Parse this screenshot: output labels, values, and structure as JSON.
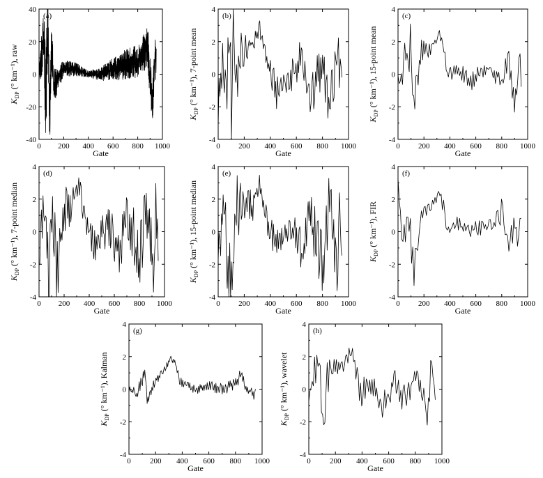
{
  "chart_data": [
    {
      "type": "line",
      "panel_label": "(a)",
      "series_kind": "raw",
      "xlabel": "Gate",
      "ylabel": {
        "base": "K",
        "sub": "DP",
        "rest": " (° km⁻¹),  raw"
      },
      "xlim": [
        0,
        1000
      ],
      "ylim": [
        -40,
        40
      ],
      "xticks": [
        0,
        200,
        400,
        600,
        800,
        1000
      ],
      "yticks": [
        -40,
        -20,
        0,
        20,
        40
      ],
      "points": 900,
      "max_gate": 950,
      "key_points": [
        [
          0,
          0
        ],
        [
          40,
          22
        ],
        [
          55,
          -22
        ],
        [
          70,
          33
        ],
        [
          85,
          -28
        ],
        [
          100,
          20
        ],
        [
          120,
          -8
        ],
        [
          200,
          4
        ],
        [
          300,
          3
        ],
        [
          400,
          0
        ],
        [
          500,
          0
        ],
        [
          600,
          3
        ],
        [
          700,
          6
        ],
        [
          800,
          8
        ],
        [
          850,
          13
        ],
        [
          880,
          17
        ],
        [
          920,
          -20
        ],
        [
          940,
          12
        ],
        [
          950,
          5
        ]
      ],
      "envelope": [
        [
          0,
          6
        ],
        [
          60,
          30
        ],
        [
          110,
          14
        ],
        [
          160,
          6
        ],
        [
          300,
          4
        ],
        [
          400,
          2
        ],
        [
          500,
          4
        ],
        [
          600,
          7
        ],
        [
          700,
          9
        ],
        [
          800,
          10
        ],
        [
          900,
          14
        ],
        [
          950,
          12
        ]
      ]
    },
    {
      "type": "line",
      "panel_label": "(b)",
      "series_kind": "7-point mean",
      "xlabel": "Gate",
      "ylabel": {
        "base": "K",
        "sub": "DP",
        "rest": " (° km⁻¹),  7-point mean"
      },
      "xlim": [
        0,
        1000
      ],
      "ylim": [
        -4,
        4
      ],
      "xticks": [
        0,
        200,
        400,
        600,
        800,
        1000
      ],
      "yticks": [
        -4,
        -2,
        0,
        2,
        4
      ],
      "points": 140,
      "max_gate": 950,
      "key_points": [
        [
          0,
          -2
        ],
        [
          30,
          1
        ],
        [
          60,
          -1
        ],
        [
          90,
          2.5
        ],
        [
          105,
          -3.8
        ],
        [
          115,
          3.8
        ],
        [
          140,
          -1.5
        ],
        [
          170,
          1.5
        ],
        [
          220,
          1.5
        ],
        [
          270,
          2
        ],
        [
          320,
          2.8
        ],
        [
          360,
          1.5
        ],
        [
          380,
          0.5
        ],
        [
          450,
          -1
        ],
        [
          550,
          0
        ],
        [
          650,
          1
        ],
        [
          700,
          -1.5
        ],
        [
          800,
          0.5
        ],
        [
          850,
          -2.1
        ],
        [
          900,
          0.5
        ],
        [
          920,
          2
        ],
        [
          940,
          -1
        ],
        [
          950,
          0.8
        ]
      ],
      "envelope": [
        [
          0,
          1.6
        ],
        [
          120,
          2.5
        ],
        [
          180,
          1.2
        ],
        [
          240,
          0.6
        ],
        [
          300,
          0.6
        ],
        [
          370,
          0.8
        ],
        [
          450,
          1.2
        ],
        [
          600,
          1.3
        ],
        [
          800,
          1.5
        ],
        [
          950,
          1.5
        ]
      ]
    },
    {
      "type": "line",
      "panel_label": "(c)",
      "series_kind": "15-point mean",
      "xlabel": "Gate",
      "ylabel": {
        "base": "K",
        "sub": "DP",
        "rest": " (° km⁻¹),  15-point mean"
      },
      "xlim": [
        0,
        1000
      ],
      "ylim": [
        -4,
        4
      ],
      "xticks": [
        0,
        200,
        400,
        600,
        800,
        1000
      ],
      "yticks": [
        -4,
        -2,
        0,
        2,
        4
      ],
      "points": 110,
      "max_gate": 950,
      "key_points": [
        [
          0,
          0
        ],
        [
          20,
          -1
        ],
        [
          50,
          2
        ],
        [
          80,
          0
        ],
        [
          100,
          2.5
        ],
        [
          120,
          -2.6
        ],
        [
          150,
          -0.5
        ],
        [
          180,
          1.5
        ],
        [
          250,
          1.6
        ],
        [
          320,
          2.5
        ],
        [
          360,
          1.5
        ],
        [
          380,
          0
        ],
        [
          450,
          0.3
        ],
        [
          550,
          -0.5
        ],
        [
          650,
          0.2
        ],
        [
          700,
          0.5
        ],
        [
          800,
          -0.5
        ],
        [
          850,
          0.8
        ],
        [
          900,
          -1.6
        ],
        [
          940,
          1
        ],
        [
          950,
          0
        ]
      ],
      "envelope": [
        [
          0,
          1.2
        ],
        [
          120,
          1.5
        ],
        [
          200,
          0.7
        ],
        [
          300,
          0.4
        ],
        [
          380,
          0.6
        ],
        [
          500,
          0.6
        ],
        [
          700,
          0.6
        ],
        [
          850,
          0.9
        ],
        [
          950,
          0.8
        ]
      ]
    },
    {
      "type": "line",
      "panel_label": "(d)",
      "series_kind": "7-point median",
      "xlabel": "Gate",
      "ylabel": {
        "base": "K",
        "sub": "DP",
        "rest": " (° km⁻¹),  7-point median"
      },
      "xlim": [
        0,
        1000
      ],
      "ylim": [
        -4,
        4
      ],
      "xticks": [
        0,
        200,
        400,
        600,
        800,
        1000
      ],
      "yticks": [
        -4,
        -2,
        0,
        2,
        4
      ],
      "points": 150,
      "max_gate": 950,
      "key_points": [
        [
          0,
          -1
        ],
        [
          40,
          1.5
        ],
        [
          80,
          -3.4
        ],
        [
          110,
          2
        ],
        [
          140,
          -2.7
        ],
        [
          200,
          1.5
        ],
        [
          260,
          1.5
        ],
        [
          310,
          3
        ],
        [
          350,
          1.5
        ],
        [
          380,
          0.5
        ],
        [
          450,
          -1
        ],
        [
          550,
          0.5
        ],
        [
          650,
          -1.5
        ],
        [
          700,
          1.5
        ],
        [
          800,
          -2
        ],
        [
          850,
          1.5
        ],
        [
          900,
          -1
        ],
        [
          915,
          -3.5
        ],
        [
          930,
          2.4
        ],
        [
          950,
          -1.7
        ]
      ],
      "envelope": [
        [
          0,
          1.5
        ],
        [
          100,
          2.5
        ],
        [
          200,
          1.5
        ],
        [
          300,
          0.8
        ],
        [
          380,
          0.8
        ],
        [
          500,
          1.2
        ],
        [
          700,
          1.8
        ],
        [
          850,
          2
        ],
        [
          950,
          2
        ]
      ]
    },
    {
      "type": "line",
      "panel_label": "(e)",
      "series_kind": "15-point median",
      "xlabel": "Gate",
      "ylabel": {
        "base": "K",
        "sub": "DP",
        "rest": " (° km⁻¹),  15-point median"
      },
      "xlim": [
        0,
        1000
      ],
      "ylim": [
        -4,
        4
      ],
      "xticks": [
        0,
        200,
        400,
        600,
        800,
        1000
      ],
      "yticks": [
        -4,
        -2,
        0,
        2,
        4
      ],
      "points": 150,
      "max_gate": 950,
      "key_points": [
        [
          0,
          -1
        ],
        [
          40,
          1.5
        ],
        [
          80,
          -2.5
        ],
        [
          110,
          -3.5
        ],
        [
          140,
          1.5
        ],
        [
          200,
          1.5
        ],
        [
          260,
          1.5
        ],
        [
          310,
          3
        ],
        [
          350,
          1.5
        ],
        [
          380,
          0.5
        ],
        [
          450,
          -1
        ],
        [
          550,
          0.5
        ],
        [
          650,
          -1.5
        ],
        [
          700,
          1
        ],
        [
          800,
          -2
        ],
        [
          850,
          1.5
        ],
        [
          900,
          -1
        ],
        [
          915,
          -3.5
        ],
        [
          930,
          2.4
        ],
        [
          950,
          -1.7
        ]
      ],
      "envelope": [
        [
          0,
          1.5
        ],
        [
          100,
          2.5
        ],
        [
          200,
          1.5
        ],
        [
          300,
          0.8
        ],
        [
          380,
          0.8
        ],
        [
          500,
          1.2
        ],
        [
          700,
          1.8
        ],
        [
          850,
          2
        ],
        [
          950,
          2
        ]
      ]
    },
    {
      "type": "line",
      "panel_label": "(f)",
      "series_kind": "FIR",
      "xlabel": "Gate",
      "ylabel": {
        "base": "K",
        "sub": "DP",
        "rest": " (° km⁻¹),  FIR"
      },
      "xlim": [
        0,
        1000
      ],
      "ylim": [
        -4,
        4
      ],
      "xticks": [
        0,
        200,
        400,
        600,
        800,
        1000
      ],
      "yticks": [
        -4,
        -2,
        0,
        2,
        4
      ],
      "points": 100,
      "max_gate": 950,
      "key_points": [
        [
          0,
          3.5
        ],
        [
          20,
          1
        ],
        [
          40,
          -0.8
        ],
        [
          80,
          1.5
        ],
        [
          120,
          -2.6
        ],
        [
          160,
          0
        ],
        [
          200,
          1.5
        ],
        [
          260,
          1.5
        ],
        [
          320,
          2.3
        ],
        [
          360,
          1.3
        ],
        [
          380,
          0
        ],
        [
          450,
          0.5
        ],
        [
          550,
          0
        ],
        [
          650,
          0.3
        ],
        [
          750,
          0.5
        ],
        [
          800,
          1.3
        ],
        [
          850,
          -0.8
        ],
        [
          900,
          0.5
        ],
        [
          920,
          -1.2
        ],
        [
          940,
          1
        ],
        [
          950,
          0.3
        ]
      ],
      "envelope": [
        [
          0,
          1
        ],
        [
          100,
          1.2
        ],
        [
          200,
          0.6
        ],
        [
          300,
          0.3
        ],
        [
          380,
          0.5
        ],
        [
          500,
          0.5
        ],
        [
          700,
          0.5
        ],
        [
          850,
          0.9
        ],
        [
          950,
          0.8
        ]
      ]
    },
    {
      "type": "line",
      "panel_label": "(g)",
      "series_kind": "Kalman",
      "xlabel": "Gate",
      "ylabel": {
        "base": "K",
        "sub": "DP",
        "rest": " (° km⁻¹),  Kalman"
      },
      "xlim": [
        0,
        1000
      ],
      "ylim": [
        -4,
        4
      ],
      "xticks": [
        0,
        200,
        400,
        600,
        800,
        1000
      ],
      "yticks": [
        -4,
        -2,
        0,
        2,
        4
      ],
      "points": 160,
      "max_gate": 950,
      "key_points": [
        [
          0,
          0
        ],
        [
          60,
          -0.3
        ],
        [
          100,
          0.5
        ],
        [
          120,
          1.2
        ],
        [
          140,
          -0.9
        ],
        [
          180,
          0.3
        ],
        [
          250,
          1
        ],
        [
          320,
          1.9
        ],
        [
          350,
          1.5
        ],
        [
          380,
          0.5
        ],
        [
          420,
          0.3
        ],
        [
          500,
          0
        ],
        [
          600,
          0.2
        ],
        [
          700,
          0
        ],
        [
          800,
          0.3
        ],
        [
          840,
          0.9
        ],
        [
          880,
          0
        ],
        [
          940,
          -0.3
        ],
        [
          950,
          0
        ]
      ],
      "envelope": [
        [
          0,
          0.2
        ],
        [
          100,
          0.5
        ],
        [
          200,
          0.3
        ],
        [
          300,
          0.2
        ],
        [
          400,
          0.3
        ],
        [
          600,
          0.3
        ],
        [
          800,
          0.4
        ],
        [
          950,
          0.4
        ]
      ]
    },
    {
      "type": "line",
      "panel_label": "(h)",
      "series_kind": "wavelet",
      "xlabel": "Gate",
      "ylabel": {
        "base": "K",
        "sub": "DP",
        "rest": " (° km⁻¹),  wavelet"
      },
      "xlim": [
        0,
        1000
      ],
      "ylim": [
        -4,
        4
      ],
      "xticks": [
        0,
        200,
        400,
        600,
        800,
        1000
      ],
      "yticks": [
        -4,
        -2,
        0,
        2,
        4
      ],
      "points": 110,
      "max_gate": 950,
      "key_points": [
        [
          0,
          -0.5
        ],
        [
          40,
          1
        ],
        [
          80,
          2
        ],
        [
          100,
          -1.6
        ],
        [
          110,
          -3.8
        ],
        [
          130,
          0.5
        ],
        [
          150,
          1
        ],
        [
          200,
          1.5
        ],
        [
          260,
          1.5
        ],
        [
          320,
          2.4
        ],
        [
          360,
          1
        ],
        [
          380,
          -0.5
        ],
        [
          450,
          0.5
        ],
        [
          550,
          -1
        ],
        [
          650,
          0.5
        ],
        [
          700,
          -0.8
        ],
        [
          800,
          0.8
        ],
        [
          850,
          -0.3
        ],
        [
          900,
          -1.5
        ],
        [
          920,
          1.6
        ],
        [
          950,
          -0.4
        ]
      ],
      "envelope": [
        [
          0,
          1
        ],
        [
          120,
          1.4
        ],
        [
          200,
          0.6
        ],
        [
          300,
          0.4
        ],
        [
          380,
          0.8
        ],
        [
          500,
          0.8
        ],
        [
          700,
          0.8
        ],
        [
          900,
          1
        ],
        [
          950,
          0.8
        ]
      ]
    }
  ]
}
